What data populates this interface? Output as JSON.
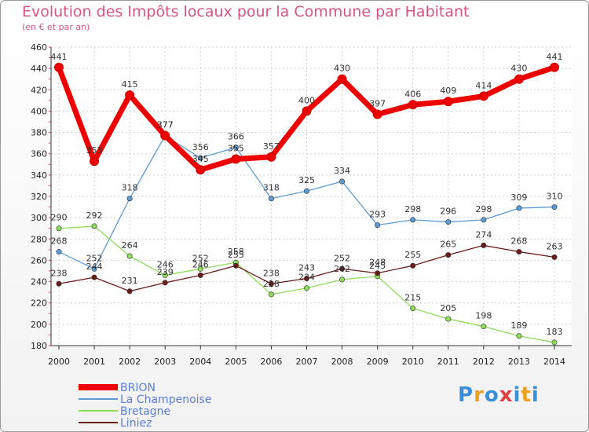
{
  "chart_data": {
    "type": "line",
    "title": "Evolution des Impôts locaux pour la Commune par Habitant",
    "subtitle": "(en € et par an)",
    "xlabel": "",
    "ylabel": "",
    "ylim": [
      180,
      460
    ],
    "y_ticks": [
      "180",
      "200",
      "220",
      "240",
      "260",
      "280",
      "300",
      "320",
      "340",
      "360",
      "380",
      "400",
      "420",
      "440",
      "460"
    ],
    "x": [
      "2000",
      "2001",
      "2002",
      "2003",
      "2004",
      "2005",
      "2006",
      "2007",
      "2008",
      "2009",
      "2010",
      "2011",
      "2012",
      "2013",
      "2014"
    ],
    "grid": true,
    "legend_position": "bottom-left",
    "series": [
      {
        "name": "BRION",
        "color": "#ee0000",
        "values": [
          441,
          353,
          415,
          377,
          345,
          355,
          357,
          400,
          430,
          397,
          406,
          409,
          414,
          430,
          441
        ]
      },
      {
        "name": "La Champenoise",
        "color": "#5b9bd5",
        "values": [
          268,
          252,
          318,
          377,
          356,
          366,
          318,
          325,
          334,
          293,
          298,
          296,
          298,
          309,
          310
        ]
      },
      {
        "name": "Bretagne",
        "color": "#8ddc5a",
        "values": [
          290,
          292,
          264,
          246,
          252,
          258,
          228,
          234,
          242,
          245,
          215,
          205,
          198,
          189,
          183
        ]
      },
      {
        "name": "Liniez",
        "color": "#6b1a1a",
        "values": [
          238,
          244,
          231,
          239,
          246,
          255,
          238,
          243,
          252,
          248,
          255,
          265,
          274,
          268,
          263
        ]
      }
    ]
  },
  "brand": {
    "letters": [
      "P",
      "r",
      "o",
      "x",
      "i",
      "t",
      "i"
    ],
    "colors": [
      "#3a8fd8",
      "#f0a020",
      "#3a8fd8",
      "#e04040",
      "#3a8fd8",
      "#f0a020",
      "#3a8fd8"
    ]
  }
}
